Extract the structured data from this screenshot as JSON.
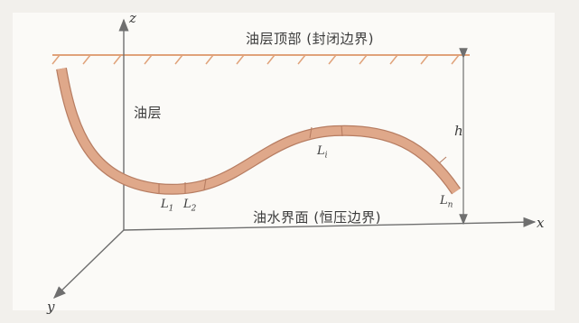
{
  "axes": {
    "x_label": "x",
    "y_label": "y",
    "z_label": "z"
  },
  "labels": {
    "top_boundary": "油层顶部 (封闭边界)",
    "bottom_boundary": "油水界面 (恒压边界)",
    "reservoir": "油层",
    "height": "h"
  },
  "segments": [
    {
      "base": "L",
      "sub": "1"
    },
    {
      "base": "L",
      "sub": "2"
    },
    {
      "base": "L",
      "sub": "i"
    },
    {
      "base": "L",
      "sub": "n"
    }
  ],
  "colors": {
    "boundary_line": "#e0a27a",
    "wellbore_fill": "#dfa88a",
    "wellbore_edge": "#b77d62",
    "axis": "#6f6f6f"
  }
}
